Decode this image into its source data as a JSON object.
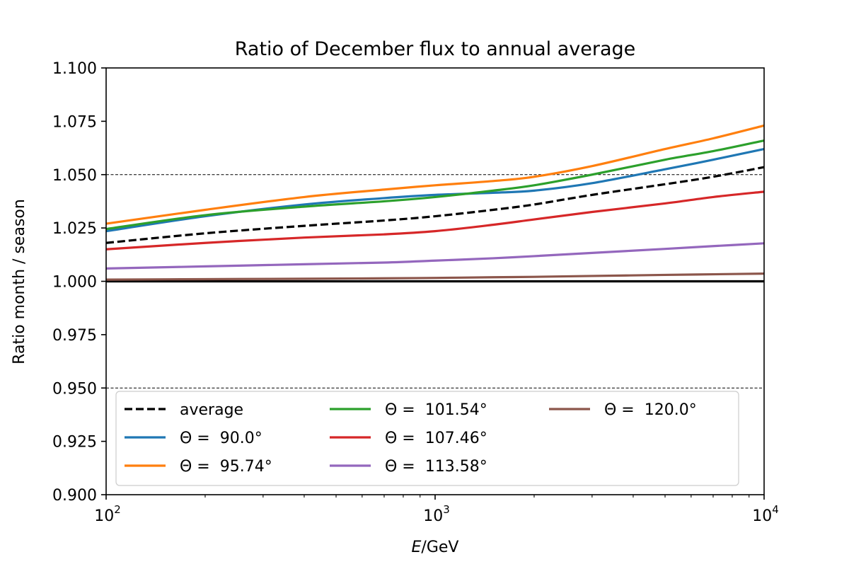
{
  "chart_data": {
    "type": "line",
    "title": "Ratio of December flux to annual average",
    "xlabel_italic": "E",
    "xlabel_rest": "/GeV",
    "ylabel": "Ratio month / season",
    "xscale": "log",
    "xlim": [
      100,
      10000
    ],
    "ylim": [
      0.9,
      1.1
    ],
    "x_ticks": [
      {
        "value": 100,
        "base": "10",
        "exp": "2"
      },
      {
        "value": 1000,
        "base": "10",
        "exp": "3"
      },
      {
        "value": 10000,
        "base": "10",
        "exp": "4"
      }
    ],
    "y_ticks": [
      {
        "value": 0.9,
        "label": "0.900"
      },
      {
        "value": 0.925,
        "label": "0.925"
      },
      {
        "value": 0.95,
        "label": "0.950"
      },
      {
        "value": 0.975,
        "label": "0.975"
      },
      {
        "value": 1.0,
        "label": "1.000"
      },
      {
        "value": 1.025,
        "label": "1.025"
      },
      {
        "value": 1.05,
        "label": "1.050"
      },
      {
        "value": 1.075,
        "label": "1.075"
      },
      {
        "value": 1.1,
        "label": "1.100"
      }
    ],
    "reference_lines": [
      {
        "y": 1.05,
        "style": "dashed-thin"
      },
      {
        "y": 0.95,
        "style": "dashed-thin"
      },
      {
        "y": 1.0,
        "style": "solid-thick"
      }
    ],
    "grid": false,
    "legend_placement": "bottom",
    "legend_columns": 3,
    "series": [
      {
        "name": "average",
        "color": "#000000",
        "dashed": true,
        "x": [
          100,
          200,
          400,
          700,
          1000,
          1500,
          2000,
          3000,
          5000,
          7000,
          10000
        ],
        "y": [
          1.018,
          1.0225,
          1.026,
          1.0285,
          1.0305,
          1.0335,
          1.036,
          1.0405,
          1.0455,
          1.049,
          1.0535
        ]
      },
      {
        "name": "Θ =  90.0°",
        "color": "#1f77b4",
        "dashed": false,
        "x": [
          100,
          200,
          400,
          700,
          1000,
          1500,
          2000,
          3000,
          5000,
          7000,
          10000
        ],
        "y": [
          1.0235,
          1.0305,
          1.036,
          1.039,
          1.0405,
          1.0415,
          1.0425,
          1.046,
          1.0525,
          1.057,
          1.062
        ]
      },
      {
        "name": "Θ =  95.74°",
        "color": "#ff7f0e",
        "dashed": false,
        "x": [
          100,
          200,
          400,
          700,
          1000,
          1500,
          2000,
          3000,
          5000,
          7000,
          10000
        ],
        "y": [
          1.027,
          1.0335,
          1.0395,
          1.043,
          1.045,
          1.047,
          1.049,
          1.054,
          1.062,
          1.067,
          1.073
        ]
      },
      {
        "name": "Θ =  101.54°",
        "color": "#2ca02c",
        "dashed": false,
        "x": [
          100,
          200,
          400,
          700,
          1000,
          1500,
          2000,
          3000,
          5000,
          7000,
          10000
        ],
        "y": [
          1.0245,
          1.031,
          1.035,
          1.0375,
          1.0395,
          1.0425,
          1.045,
          1.05,
          1.057,
          1.061,
          1.066
        ]
      },
      {
        "name": "Θ =  107.46°",
        "color": "#d62728",
        "dashed": false,
        "x": [
          100,
          200,
          400,
          700,
          1000,
          1500,
          2000,
          3000,
          5000,
          7000,
          10000
        ],
        "y": [
          1.015,
          1.018,
          1.0205,
          1.022,
          1.0235,
          1.0265,
          1.029,
          1.0325,
          1.0365,
          1.0395,
          1.042
        ]
      },
      {
        "name": "Θ =  113.58°",
        "color": "#9467bd",
        "dashed": false,
        "x": [
          100,
          200,
          400,
          700,
          1000,
          1500,
          2000,
          3000,
          5000,
          7000,
          10000
        ],
        "y": [
          1.006,
          1.007,
          1.008,
          1.0088,
          1.0097,
          1.0108,
          1.0118,
          1.0133,
          1.0152,
          1.0165,
          1.0178
        ]
      },
      {
        "name": "Θ =  120.0°",
        "color": "#8c564b",
        "dashed": false,
        "x": [
          100,
          200,
          400,
          700,
          1000,
          1500,
          2000,
          3000,
          5000,
          7000,
          10000
        ],
        "y": [
          1.0008,
          1.001,
          1.0012,
          1.0014,
          1.0016,
          1.0019,
          1.0021,
          1.0025,
          1.003,
          1.0033,
          1.0036
        ]
      }
    ]
  }
}
